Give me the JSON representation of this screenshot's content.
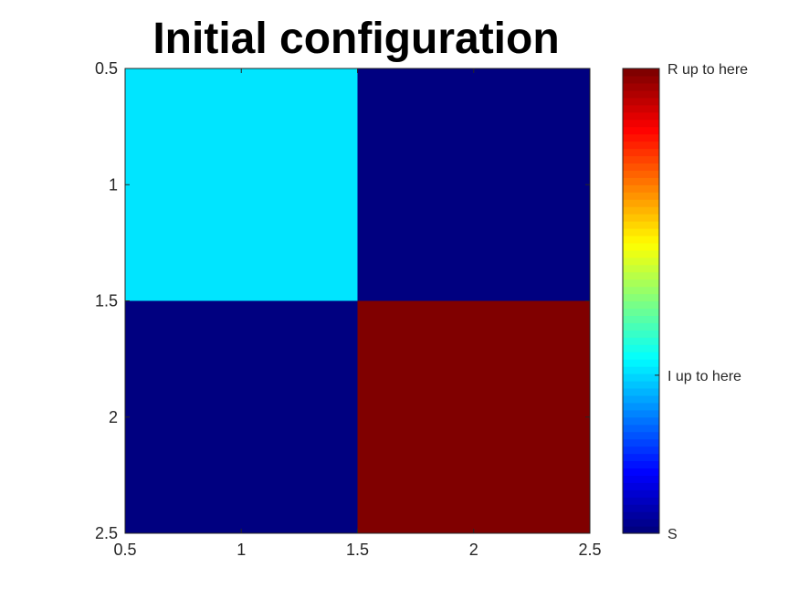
{
  "chart_data": {
    "type": "heatmap",
    "title": "Initial configuration",
    "xlabel": "",
    "ylabel": "",
    "xlim": [
      0.5,
      2.5
    ],
    "ylim": [
      0.5,
      2.5
    ],
    "y_reversed": true,
    "x_ticks": [
      "0.5",
      "1",
      "1.5",
      "2",
      "2.5"
    ],
    "y_ticks": [
      "0.5",
      "1",
      "1.5",
      "2",
      "2.5"
    ],
    "x_tick_values": [
      0.5,
      1,
      1.5,
      2,
      2.5
    ],
    "y_tick_values": [
      0.5,
      1,
      1.5,
      2,
      2.5
    ],
    "grid": false,
    "colormap": "jet",
    "clim": [
      0,
      1
    ],
    "cells": [
      [
        0.35,
        0.0
      ],
      [
        0.0,
        1.0
      ]
    ],
    "colorbar": {
      "labels": [
        {
          "text": "R up to here",
          "value": 1.0
        },
        {
          "text": "I up to here",
          "value": 0.34
        },
        {
          "text": "S",
          "value": 0.0
        }
      ]
    }
  }
}
